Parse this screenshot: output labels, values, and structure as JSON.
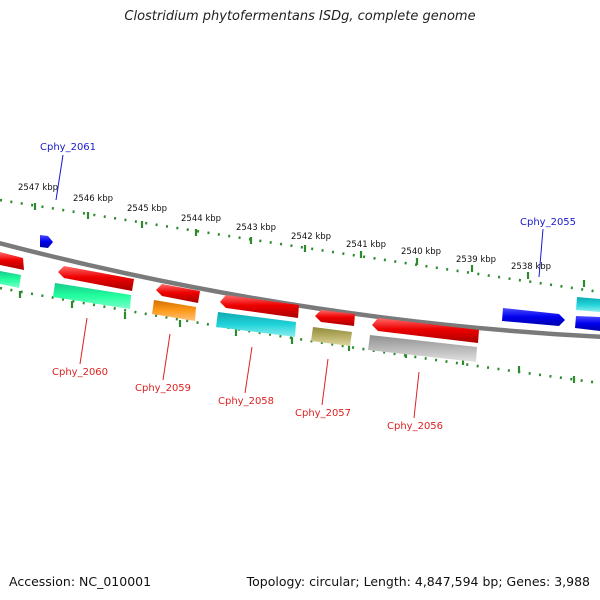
{
  "title": "Clostridium phytofermentans ISDg, complete genome",
  "scale": {
    "labels": [
      "2547 kbp",
      "2546 kbp",
      "2545 kbp",
      "2544 kbp",
      "2543 kbp",
      "2542 kbp",
      "2541 kbp",
      "2540 kbp",
      "2539 kbp",
      "2538 kbp"
    ]
  },
  "genes": {
    "forward": [
      "Cphy_2061",
      "Cphy_2055"
    ],
    "reverse": [
      "Cphy_2060",
      "Cphy_2059",
      "Cphy_2058",
      "Cphy_2057",
      "Cphy_2056"
    ]
  },
  "colors": {
    "forward_cds": "#0000ee",
    "reverse_cds": "#ee0000",
    "backbone": "#7a7a7a",
    "scale_ring": "#2f8a2f",
    "forward_label": "#1a1acc",
    "reverse_label": "#dd2222"
  },
  "footer": {
    "accession": "Accession: NC_010001",
    "summary": "Topology: circular; Length: 4,847,594 bp; Genes: 3,988"
  }
}
